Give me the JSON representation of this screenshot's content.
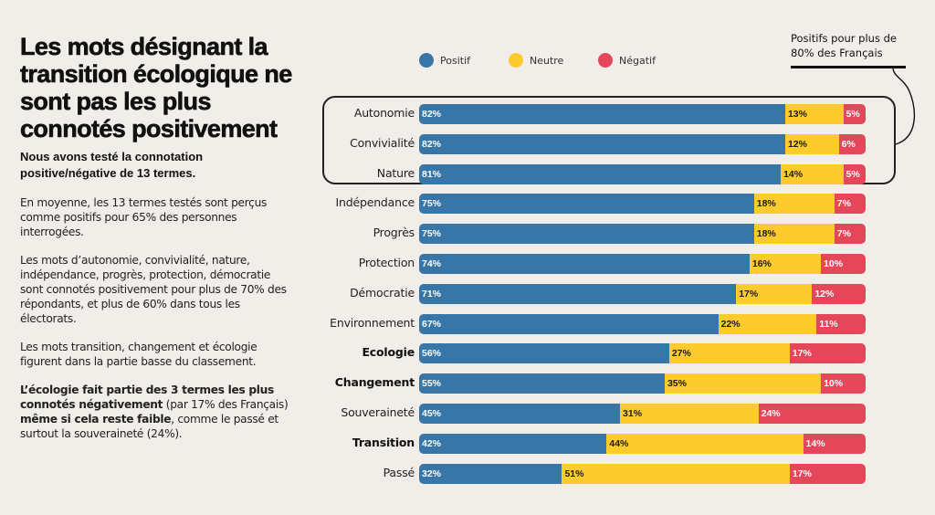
{
  "colors": {
    "background": "#f1ede8",
    "positif": "#3876a8",
    "neutre": "#fdcb2c",
    "negatif": "#e5475a",
    "label_on_positif": "#ffffff",
    "label_on_neutre": "#1a1a1a",
    "label_on_negatif": "#ffffff"
  },
  "left_panel": {
    "title": "Les mots désignant la transition écologique ne sont pas les plus connotés positivement",
    "subtitle": "Nous avons testé la connotation positive/négative de 13 termes.",
    "para1": "En moyenne, les 13 termes testés sont perçus comme positifs pour 65% des personnes interrogées.",
    "para2": "Les mots d’autonomie, convivialité, nature, indépendance, progrès, protection, démocratie sont connotés positivement pour plus de 70% des répondants, et plus de 60% dans tous les électorats.",
    "para3": "Les mots transition, changement et écologie figurent dans la partie basse du classement.",
    "para4": {
      "bold1": "L’écologie fait partie des 3 termes les plus connotés négativement",
      "text1": " (par 17% des Français) ",
      "bold2": "même si cela reste faible",
      "text2": ", comme le passé et surtout la souveraineté (24%)."
    }
  },
  "annotation": {
    "text": "Positifs pour plus de 80% des Français",
    "highlighted_categories": [
      "Autonomie",
      "Convivialité",
      "Nature"
    ]
  },
  "chart_data": {
    "type": "bar",
    "orientation": "horizontal",
    "stacked": true,
    "title": "",
    "xlabel": "",
    "ylabel": "",
    "xlim": [
      0,
      100
    ],
    "grid": false,
    "legend_position": "top",
    "categories": [
      "Autonomie",
      "Convivialité",
      "Nature",
      "Indépendance",
      "Progrès",
      "Protection",
      "Démocratie",
      "Environnement",
      "Ecologie",
      "Changement",
      "Souveraineté",
      "Transition",
      "Passé"
    ],
    "bold_categories": [
      "Ecologie",
      "Changement",
      "Transition"
    ],
    "series": [
      {
        "name": "Positif",
        "color": "#3876a8",
        "values": [
          82,
          82,
          81,
          75,
          75,
          74,
          71,
          67,
          56,
          55,
          45,
          42,
          32
        ]
      },
      {
        "name": "Neutre",
        "color": "#fdcb2c",
        "values": [
          13,
          12,
          14,
          18,
          18,
          16,
          17,
          22,
          27,
          35,
          31,
          44,
          51
        ]
      },
      {
        "name": "Négatif",
        "color": "#e5475a",
        "values": [
          5,
          6,
          5,
          7,
          7,
          10,
          12,
          11,
          17,
          10,
          24,
          14,
          17
        ]
      }
    ],
    "value_suffix": "%"
  }
}
